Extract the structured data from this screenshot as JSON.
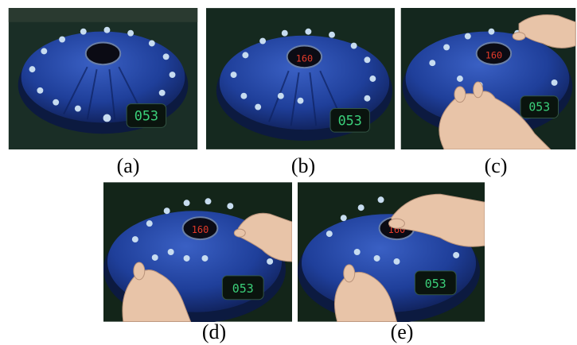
{
  "figure": {
    "panels": [
      {
        "caption": "(a)",
        "display_left": "053",
        "display_center": "",
        "hands": []
      },
      {
        "caption": "(b)",
        "display_left": "053",
        "display_center": "160",
        "hands": []
      },
      {
        "caption": "(c)",
        "display_left": "053",
        "display_center": "160",
        "hands": [
          "right-hand-top",
          "left-hand-bottom"
        ]
      },
      {
        "caption": "(d)",
        "display_left": "053",
        "display_center": "160",
        "hands": [
          "right-hand-top",
          "left-hand-bottom"
        ]
      },
      {
        "caption": "(e)",
        "display_left": "053",
        "display_center": "160",
        "hands": [
          "right-hand-top",
          "left-hand-bottom"
        ]
      }
    ],
    "colors": {
      "device_blue": "#1f3f9a",
      "device_dark": "#14296b",
      "background": "#162a22",
      "led_green": "#3bd07a",
      "led_red": "#e23a2a",
      "button_light": "#c7dcf0",
      "skin": "#e8c4a8"
    }
  }
}
